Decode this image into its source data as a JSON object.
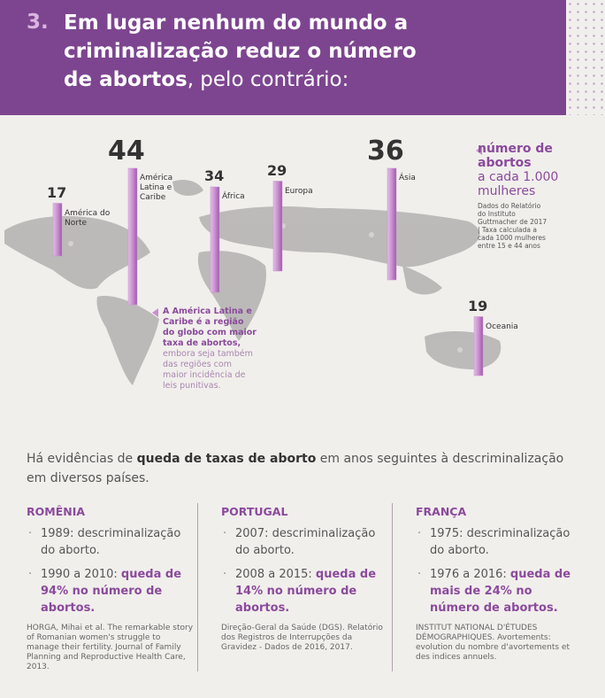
{
  "header": {
    "number": "3.",
    "title_bold": "Em lugar nenhum do mundo a criminalização reduz o número de abortos",
    "title_rest": ", pelo contrário:"
  },
  "chart_data": {
    "type": "bar",
    "categories": [
      "América do Norte",
      "América Latina e Caribe",
      "África",
      "Europa",
      "Ásia",
      "Oceania"
    ],
    "values": [
      17,
      44,
      34,
      29,
      36,
      19
    ],
    "color": "#c98fd0"
  },
  "legend": {
    "bold": "número de abortos",
    "text": "a cada 1.000 mulheres",
    "note": "Dados do Relatório do Instituto Guttmacher de 2017 | Taxa calculada a cada 1000 mulheres entre 15 e 44 anos"
  },
  "callout": {
    "bold": "A América Latina e Caribe é a região do globo com maior taxa de abortos,",
    "text": "embora seja também das regiões com maior incidência de leis punitivas."
  },
  "intro": {
    "before": "Há evidências de",
    "bold": "queda de taxas de aborto",
    "after": "em anos seguintes à descriminalização em diversos países."
  },
  "countries": [
    {
      "name": "ROMÊNIA",
      "items": [
        {
          "text": "1989: descriminalização do aborto."
        },
        {
          "text": "1990 a 2010:",
          "bold": "queda de 94% no número de abortos."
        }
      ],
      "source": "HORGA, Mihai et al. The remarkable story of Romanian women's struggle to manage their fertility. Journal of Family Planning and Reproductive Health Care, 2013."
    },
    {
      "name": "PORTUGAL",
      "items": [
        {
          "text": "2007: descriminalização do aborto."
        },
        {
          "text": "2008 a 2015:",
          "bold": "queda de 14% no número de abortos."
        }
      ],
      "source": "Direção-Geral da Saúde (DGS). Relatório dos Registros de Interrupções da Gravidez - Dados de 2016, 2017."
    },
    {
      "name": "FRANÇA",
      "items": [
        {
          "text": "1975: descriminalização do aborto."
        },
        {
          "text": "1976 a 2016:",
          "bold": "queda de mais de 24% no número de abortos."
        }
      ],
      "source": "INSTITUT NATIONAL D'ÉTUDES DÉMOGRAPHIQUES. Avortements: evolution du nombre d'avortements et des indices annuels."
    }
  ]
}
